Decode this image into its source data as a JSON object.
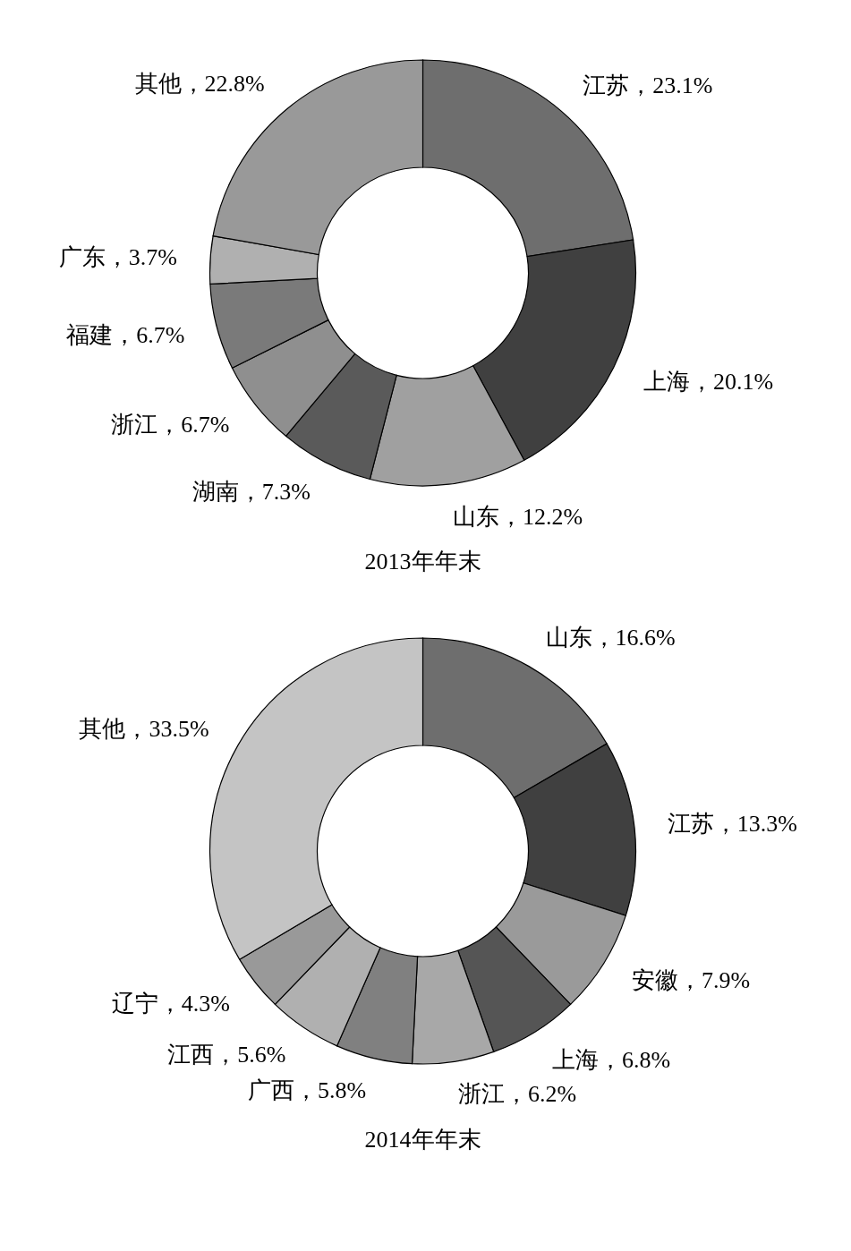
{
  "chart_data": [
    {
      "type": "donut",
      "title": "2013年年末",
      "categories": [
        "江苏",
        "上海",
        "山东",
        "湖南",
        "浙江",
        "福建",
        "广东",
        "其他"
      ],
      "values": [
        23.1,
        20.1,
        12.2,
        7.3,
        6.7,
        6.7,
        3.7,
        22.8
      ],
      "colors": [
        "#6e6e6e",
        "#404040",
        "#a0a0a0",
        "#5a5a5a",
        "#8f8f8f",
        "#7a7a7a",
        "#b0b0b0",
        "#999999"
      ],
      "value_labels": [
        "23.1%",
        "20.1%",
        "12.2%",
        "7.3%",
        "6.7%",
        "6.7%",
        "3.7%",
        "22.8%"
      ]
    },
    {
      "type": "donut",
      "title": "2014年年末",
      "categories": [
        "山东",
        "江苏",
        "安徽",
        "上海",
        "浙江",
        "广西",
        "江西",
        "辽宁",
        "其他"
      ],
      "values": [
        16.6,
        13.3,
        7.9,
        6.8,
        6.2,
        5.8,
        5.6,
        4.3,
        33.5
      ],
      "colors": [
        "#6e6e6e",
        "#404040",
        "#9a9a9a",
        "#555555",
        "#a8a8a8",
        "#808080",
        "#b0b0b0",
        "#999999",
        "#c4c4c4"
      ],
      "value_labels": [
        "16.6%",
        "13.3%",
        "7.9%",
        "6.8%",
        "6.2%",
        "5.8%",
        "5.6%",
        "4.3%",
        "33.5%"
      ]
    }
  ]
}
